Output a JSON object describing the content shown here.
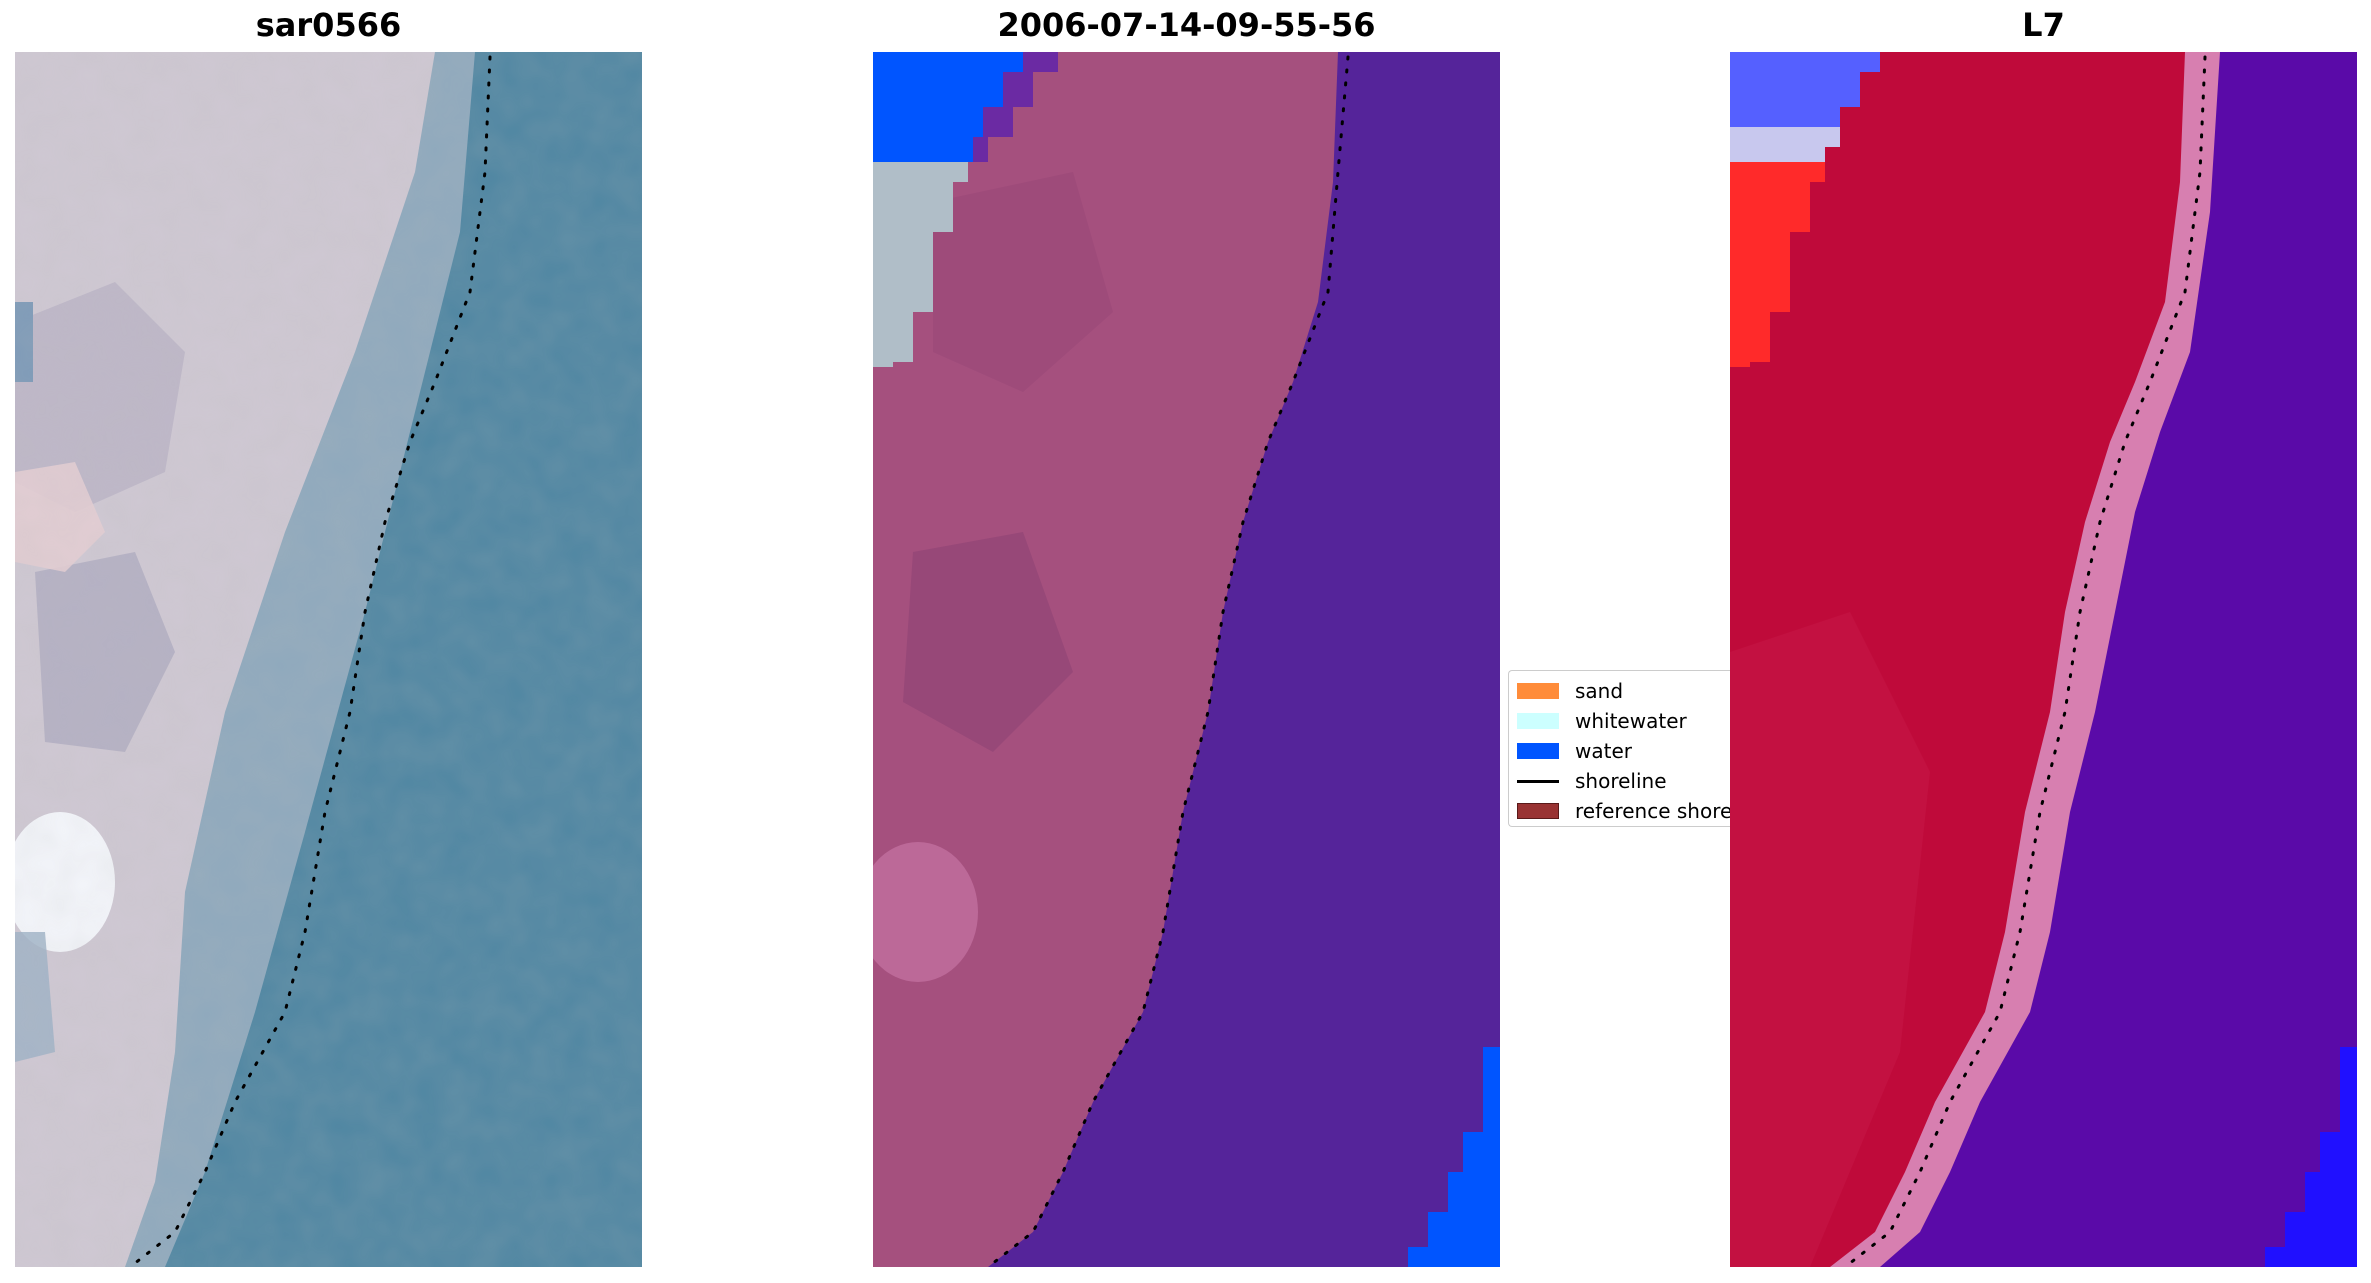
{
  "panels": [
    {
      "title": "sar0566"
    },
    {
      "title": "2006-07-14-09-55-56"
    },
    {
      "title": "L7"
    }
  ],
  "legend": {
    "position": "center-right of middle panel",
    "items": [
      {
        "label": "sand",
        "swatch": "#ff8c3a",
        "kind": "patch"
      },
      {
        "label": "whitewater",
        "swatch": "#ccffff",
        "kind": "patch"
      },
      {
        "label": "water",
        "swatch": "#0055ff",
        "kind": "patch"
      },
      {
        "label": "shoreline",
        "swatch": "#000000",
        "kind": "line"
      },
      {
        "label": "reference shoreline",
        "swatch": "#993333",
        "kind": "patch"
      }
    ]
  },
  "colors": {
    "rgb_sand": "#d6cdd6",
    "rgb_water": "#4f86a2",
    "class_land": "#a5507e",
    "class_water": "#55249a",
    "class_water_blue": "#0055ff",
    "class_whitewater": "#b0bec8",
    "ndwi_land": "#bf0a3a",
    "ndwi_water": "#5a0aa8"
  }
}
